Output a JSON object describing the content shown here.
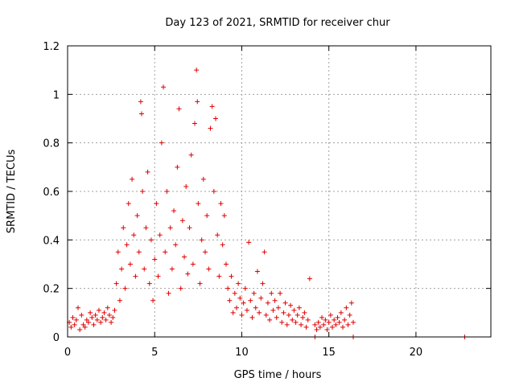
{
  "chart_data": {
    "type": "scatter",
    "title": "Day 123 of 2021, SRMTID for receiver chur",
    "xlabel": "GPS time / hours",
    "ylabel": "SRMTID / TECUs",
    "xlim": [
      0,
      24.3
    ],
    "ylim": [
      0,
      1.2
    ],
    "xticks": [
      0,
      5,
      10,
      15,
      20
    ],
    "yticks": [
      0,
      0.2,
      0.4,
      0.6,
      0.8,
      1,
      1.2
    ],
    "xtick_labels": [
      "0",
      "5",
      "10",
      "15",
      "20"
    ],
    "ytick_labels": [
      "0",
      "0.2",
      "0.4",
      "0.6",
      "0.8",
      "1",
      "1.2"
    ],
    "grid": true,
    "marker": "+",
    "color": "#e00000",
    "series": [
      {
        "name": "SRMTID",
        "points": [
          [
            0.1,
            0.06
          ],
          [
            0.2,
            0.04
          ],
          [
            0.3,
            0.08
          ],
          [
            0.4,
            0.05
          ],
          [
            0.5,
            0.07
          ],
          [
            0.6,
            0.12
          ],
          [
            0.7,
            0.03
          ],
          [
            0.8,
            0.09
          ],
          [
            0.9,
            0.05
          ],
          [
            1.0,
            0.04
          ],
          [
            1.1,
            0.07
          ],
          [
            1.2,
            0.06
          ],
          [
            1.3,
            0.1
          ],
          [
            1.4,
            0.08
          ],
          [
            1.5,
            0.05
          ],
          [
            1.6,
            0.09
          ],
          [
            1.7,
            0.07
          ],
          [
            1.8,
            0.11
          ],
          [
            1.9,
            0.06
          ],
          [
            2.0,
            0.08
          ],
          [
            2.1,
            0.1
          ],
          [
            2.2,
            0.07
          ],
          [
            2.3,
            0.12
          ],
          [
            2.4,
            0.09
          ],
          [
            2.5,
            0.06
          ],
          [
            2.6,
            0.08
          ],
          [
            2.7,
            0.11
          ],
          [
            2.8,
            0.22
          ],
          [
            2.9,
            0.35
          ],
          [
            3.0,
            0.15
          ],
          [
            3.1,
            0.28
          ],
          [
            3.2,
            0.45
          ],
          [
            3.3,
            0.2
          ],
          [
            3.4,
            0.38
          ],
          [
            3.5,
            0.55
          ],
          [
            3.6,
            0.3
          ],
          [
            3.7,
            0.65
          ],
          [
            3.8,
            0.42
          ],
          [
            3.9,
            0.25
          ],
          [
            4.0,
            0.5
          ],
          [
            4.1,
            0.35
          ],
          [
            4.2,
            0.97
          ],
          [
            4.25,
            0.92
          ],
          [
            4.3,
            0.6
          ],
          [
            4.4,
            0.28
          ],
          [
            4.5,
            0.45
          ],
          [
            4.6,
            0.68
          ],
          [
            4.7,
            0.22
          ],
          [
            4.8,
            0.4
          ],
          [
            4.9,
            0.15
          ],
          [
            5.0,
            0.32
          ],
          [
            5.1,
            0.55
          ],
          [
            5.2,
            0.25
          ],
          [
            5.3,
            0.42
          ],
          [
            5.4,
            0.8
          ],
          [
            5.5,
            1.03
          ],
          [
            5.6,
            0.35
          ],
          [
            5.7,
            0.6
          ],
          [
            5.8,
            0.18
          ],
          [
            5.9,
            0.45
          ],
          [
            6.0,
            0.28
          ],
          [
            6.1,
            0.52
          ],
          [
            6.2,
            0.38
          ],
          [
            6.3,
            0.7
          ],
          [
            6.4,
            0.94
          ],
          [
            6.5,
            0.2
          ],
          [
            6.6,
            0.48
          ],
          [
            6.7,
            0.33
          ],
          [
            6.8,
            0.62
          ],
          [
            6.9,
            0.26
          ],
          [
            7.0,
            0.45
          ],
          [
            7.1,
            0.75
          ],
          [
            7.2,
            0.3
          ],
          [
            7.3,
            0.88
          ],
          [
            7.4,
            1.1
          ],
          [
            7.45,
            0.97
          ],
          [
            7.5,
            0.55
          ],
          [
            7.6,
            0.22
          ],
          [
            7.7,
            0.4
          ],
          [
            7.8,
            0.65
          ],
          [
            7.9,
            0.35
          ],
          [
            8.0,
            0.5
          ],
          [
            8.1,
            0.28
          ],
          [
            8.2,
            0.86
          ],
          [
            8.3,
            0.95
          ],
          [
            8.4,
            0.6
          ],
          [
            8.5,
            0.9
          ],
          [
            8.6,
            0.42
          ],
          [
            8.7,
            0.25
          ],
          [
            8.8,
            0.55
          ],
          [
            8.9,
            0.38
          ],
          [
            9.0,
            0.5
          ],
          [
            9.1,
            0.3
          ],
          [
            9.2,
            0.2
          ],
          [
            9.3,
            0.15
          ],
          [
            9.4,
            0.25
          ],
          [
            9.5,
            0.1
          ],
          [
            9.6,
            0.18
          ],
          [
            9.7,
            0.12
          ],
          [
            9.8,
            0.22
          ],
          [
            9.9,
            0.16
          ],
          [
            10.0,
            0.09
          ],
          [
            10.1,
            0.14
          ],
          [
            10.2,
            0.2
          ],
          [
            10.3,
            0.11
          ],
          [
            10.4,
            0.39
          ],
          [
            10.5,
            0.15
          ],
          [
            10.6,
            0.08
          ],
          [
            10.7,
            0.18
          ],
          [
            10.8,
            0.12
          ],
          [
            10.9,
            0.27
          ],
          [
            11.0,
            0.1
          ],
          [
            11.1,
            0.16
          ],
          [
            11.2,
            0.22
          ],
          [
            11.3,
            0.35
          ],
          [
            11.4,
            0.09
          ],
          [
            11.5,
            0.14
          ],
          [
            11.6,
            0.07
          ],
          [
            11.7,
            0.18
          ],
          [
            11.8,
            0.11
          ],
          [
            11.9,
            0.15
          ],
          [
            12.0,
            0.08
          ],
          [
            12.1,
            0.12
          ],
          [
            12.2,
            0.18
          ],
          [
            12.3,
            0.06
          ],
          [
            12.4,
            0.1
          ],
          [
            12.5,
            0.14
          ],
          [
            12.6,
            0.05
          ],
          [
            12.7,
            0.09
          ],
          [
            12.8,
            0.13
          ],
          [
            12.9,
            0.07
          ],
          [
            13.0,
            0.11
          ],
          [
            13.1,
            0.06
          ],
          [
            13.2,
            0.09
          ],
          [
            13.3,
            0.12
          ],
          [
            13.4,
            0.05
          ],
          [
            13.5,
            0.08
          ],
          [
            13.6,
            0.1
          ],
          [
            13.7,
            0.04
          ],
          [
            13.8,
            0.07
          ],
          [
            13.9,
            0.24
          ],
          [
            14.2,
            0.05
          ],
          [
            14.3,
            0.03
          ],
          [
            14.4,
            0.06
          ],
          [
            14.5,
            0.04
          ],
          [
            14.6,
            0.08
          ],
          [
            14.7,
            0.05
          ],
          [
            14.8,
            0.07
          ],
          [
            14.9,
            0.03
          ],
          [
            15.0,
            0.06
          ],
          [
            15.1,
            0.09
          ],
          [
            15.2,
            0.04
          ],
          [
            15.3,
            0.07
          ],
          [
            15.4,
            0.05
          ],
          [
            15.5,
            0.08
          ],
          [
            15.6,
            0.06
          ],
          [
            15.7,
            0.1
          ],
          [
            15.8,
            0.04
          ],
          [
            15.9,
            0.07
          ],
          [
            16.0,
            0.12
          ],
          [
            16.1,
            0.05
          ],
          [
            16.2,
            0.09
          ],
          [
            16.3,
            0.14
          ],
          [
            16.4,
            0.06
          ],
          [
            14.2,
            0.0
          ],
          [
            16.4,
            0.0
          ],
          [
            22.8,
            0.0
          ]
        ]
      }
    ]
  }
}
